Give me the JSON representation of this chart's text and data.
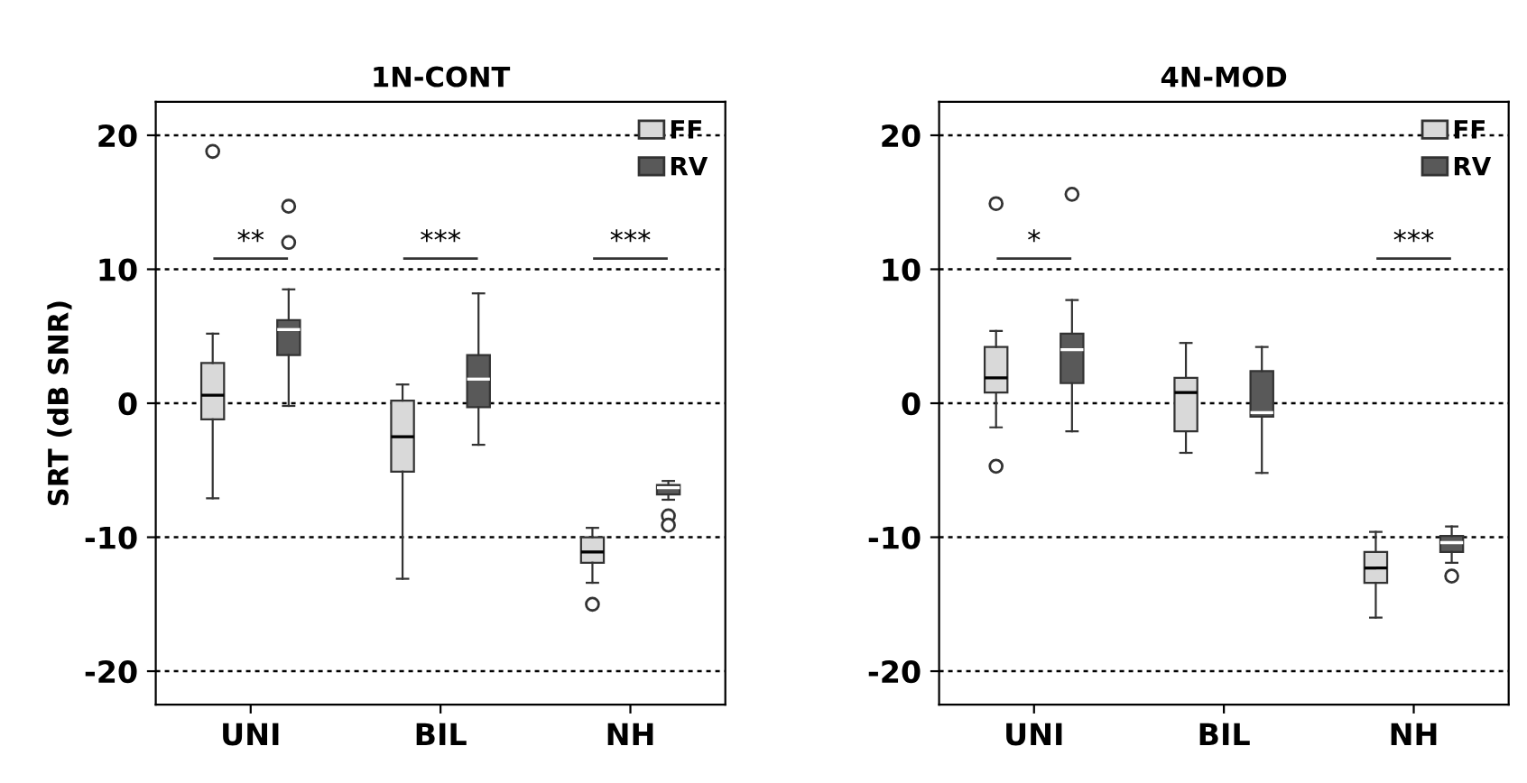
{
  "chart_data": [
    {
      "type": "box",
      "title": "1N-CONT",
      "ylabel": "SRT (dB SNR)",
      "categories": [
        "UNI",
        "BIL",
        "NH"
      ],
      "ylim": [
        -22.5,
        22.5
      ],
      "yticks": [
        -20,
        -10,
        0,
        10,
        20
      ],
      "grid": "y",
      "legend": "top right",
      "annotations": [
        "**",
        "***",
        "***"
      ],
      "series": [
        {
          "name": "FF",
          "color": "#d9d9d9",
          "boxes": [
            {
              "low": -7.1,
              "q1": -1.2,
              "median": 0.6,
              "q3": 3.0,
              "high": 5.2,
              "outliers": [
                18.8
              ]
            },
            {
              "low": -13.1,
              "q1": -5.1,
              "median": -2.5,
              "q3": 0.2,
              "high": 1.4
            },
            {
              "low": -13.4,
              "q1": -11.9,
              "median": -11.1,
              "q3": -10.0,
              "high": -9.3,
              "outliers": [
                -15.0
              ]
            }
          ]
        },
        {
          "name": "RV",
          "color": "#595959",
          "boxes": [
            {
              "low": -0.2,
              "q1": 3.6,
              "median": 5.5,
              "q3": 6.2,
              "high": 8.5,
              "outliers": [
                14.7,
                12.0
              ]
            },
            {
              "low": -3.1,
              "q1": -0.3,
              "median": 1.8,
              "q3": 3.6,
              "high": 8.2
            },
            {
              "low": -7.2,
              "q1": -6.8,
              "median": -6.3,
              "q3": -6.1,
              "high": -5.8,
              "outliers": [
                -8.4,
                -9.1
              ]
            }
          ]
        }
      ]
    },
    {
      "type": "box",
      "title": "4N-MOD",
      "categories": [
        "UNI",
        "BIL",
        "NH"
      ],
      "ylim": [
        -22.5,
        22.5
      ],
      "yticks": [
        -20,
        -10,
        0,
        10,
        20
      ],
      "grid": "y",
      "legend": "top right",
      "annotations": [
        "*",
        "***"
      ],
      "series": [
        {
          "name": "FF",
          "color": "#d9d9d9",
          "boxes": [
            {
              "low": -1.8,
              "q1": 0.8,
              "median": 1.9,
              "q3": 4.2,
              "high": 5.4,
              "outliers": [
                14.9,
                -4.7
              ]
            },
            {
              "low": -3.7,
              "q1": -2.1,
              "median": 0.8,
              "q3": 1.9,
              "high": 4.5
            },
            {
              "low": -16.0,
              "q1": -13.4,
              "median": -12.3,
              "q3": -11.1,
              "high": -9.6
            }
          ]
        },
        {
          "name": "RV",
          "color": "#595959",
          "boxes": [
            {
              "low": -2.1,
              "q1": 1.5,
              "median": 4.0,
              "q3": 5.2,
              "high": 7.7,
              "outliers": [
                15.6
              ]
            },
            {
              "low": -5.2,
              "q1": -1.0,
              "median": -0.7,
              "q3": 2.4,
              "high": 4.2
            },
            {
              "low": -11.9,
              "q1": -11.1,
              "median": -10.4,
              "q3": -9.9,
              "high": -9.2,
              "outliers": [
                -12.9
              ]
            }
          ]
        }
      ]
    }
  ]
}
